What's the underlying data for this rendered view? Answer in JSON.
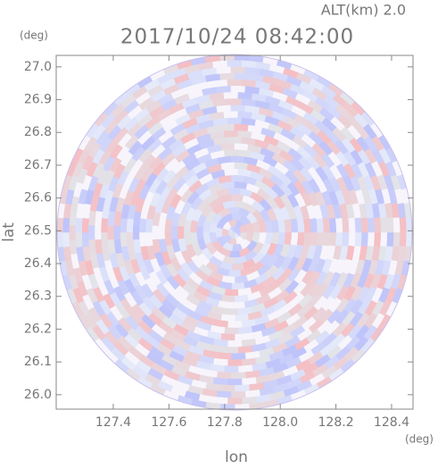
{
  "chart_data": {
    "type": "ppi",
    "title": "2017/10/24 08:42:00",
    "subtitle": "ALT(km) 2.0",
    "x_label": "lon",
    "y_label": "lat",
    "x_unit": "(deg)",
    "y_unit": "(deg)",
    "xlim": [
      127.195,
      128.477
    ],
    "ylim": [
      25.956,
      27.035
    ],
    "xticks": [
      127.4,
      127.6,
      127.8,
      {
        "value": 128.0,
        "label": "128.0"
      },
      128.2,
      128.4
    ],
    "yticks": [
      {
        "value": 26.0,
        "label": "26.0"
      },
      26.1,
      26.2,
      26.3,
      26.4,
      26.5,
      26.6,
      26.7,
      26.8,
      26.9,
      {
        "value": 27.0,
        "label": "27.0"
      }
    ]
  }
}
